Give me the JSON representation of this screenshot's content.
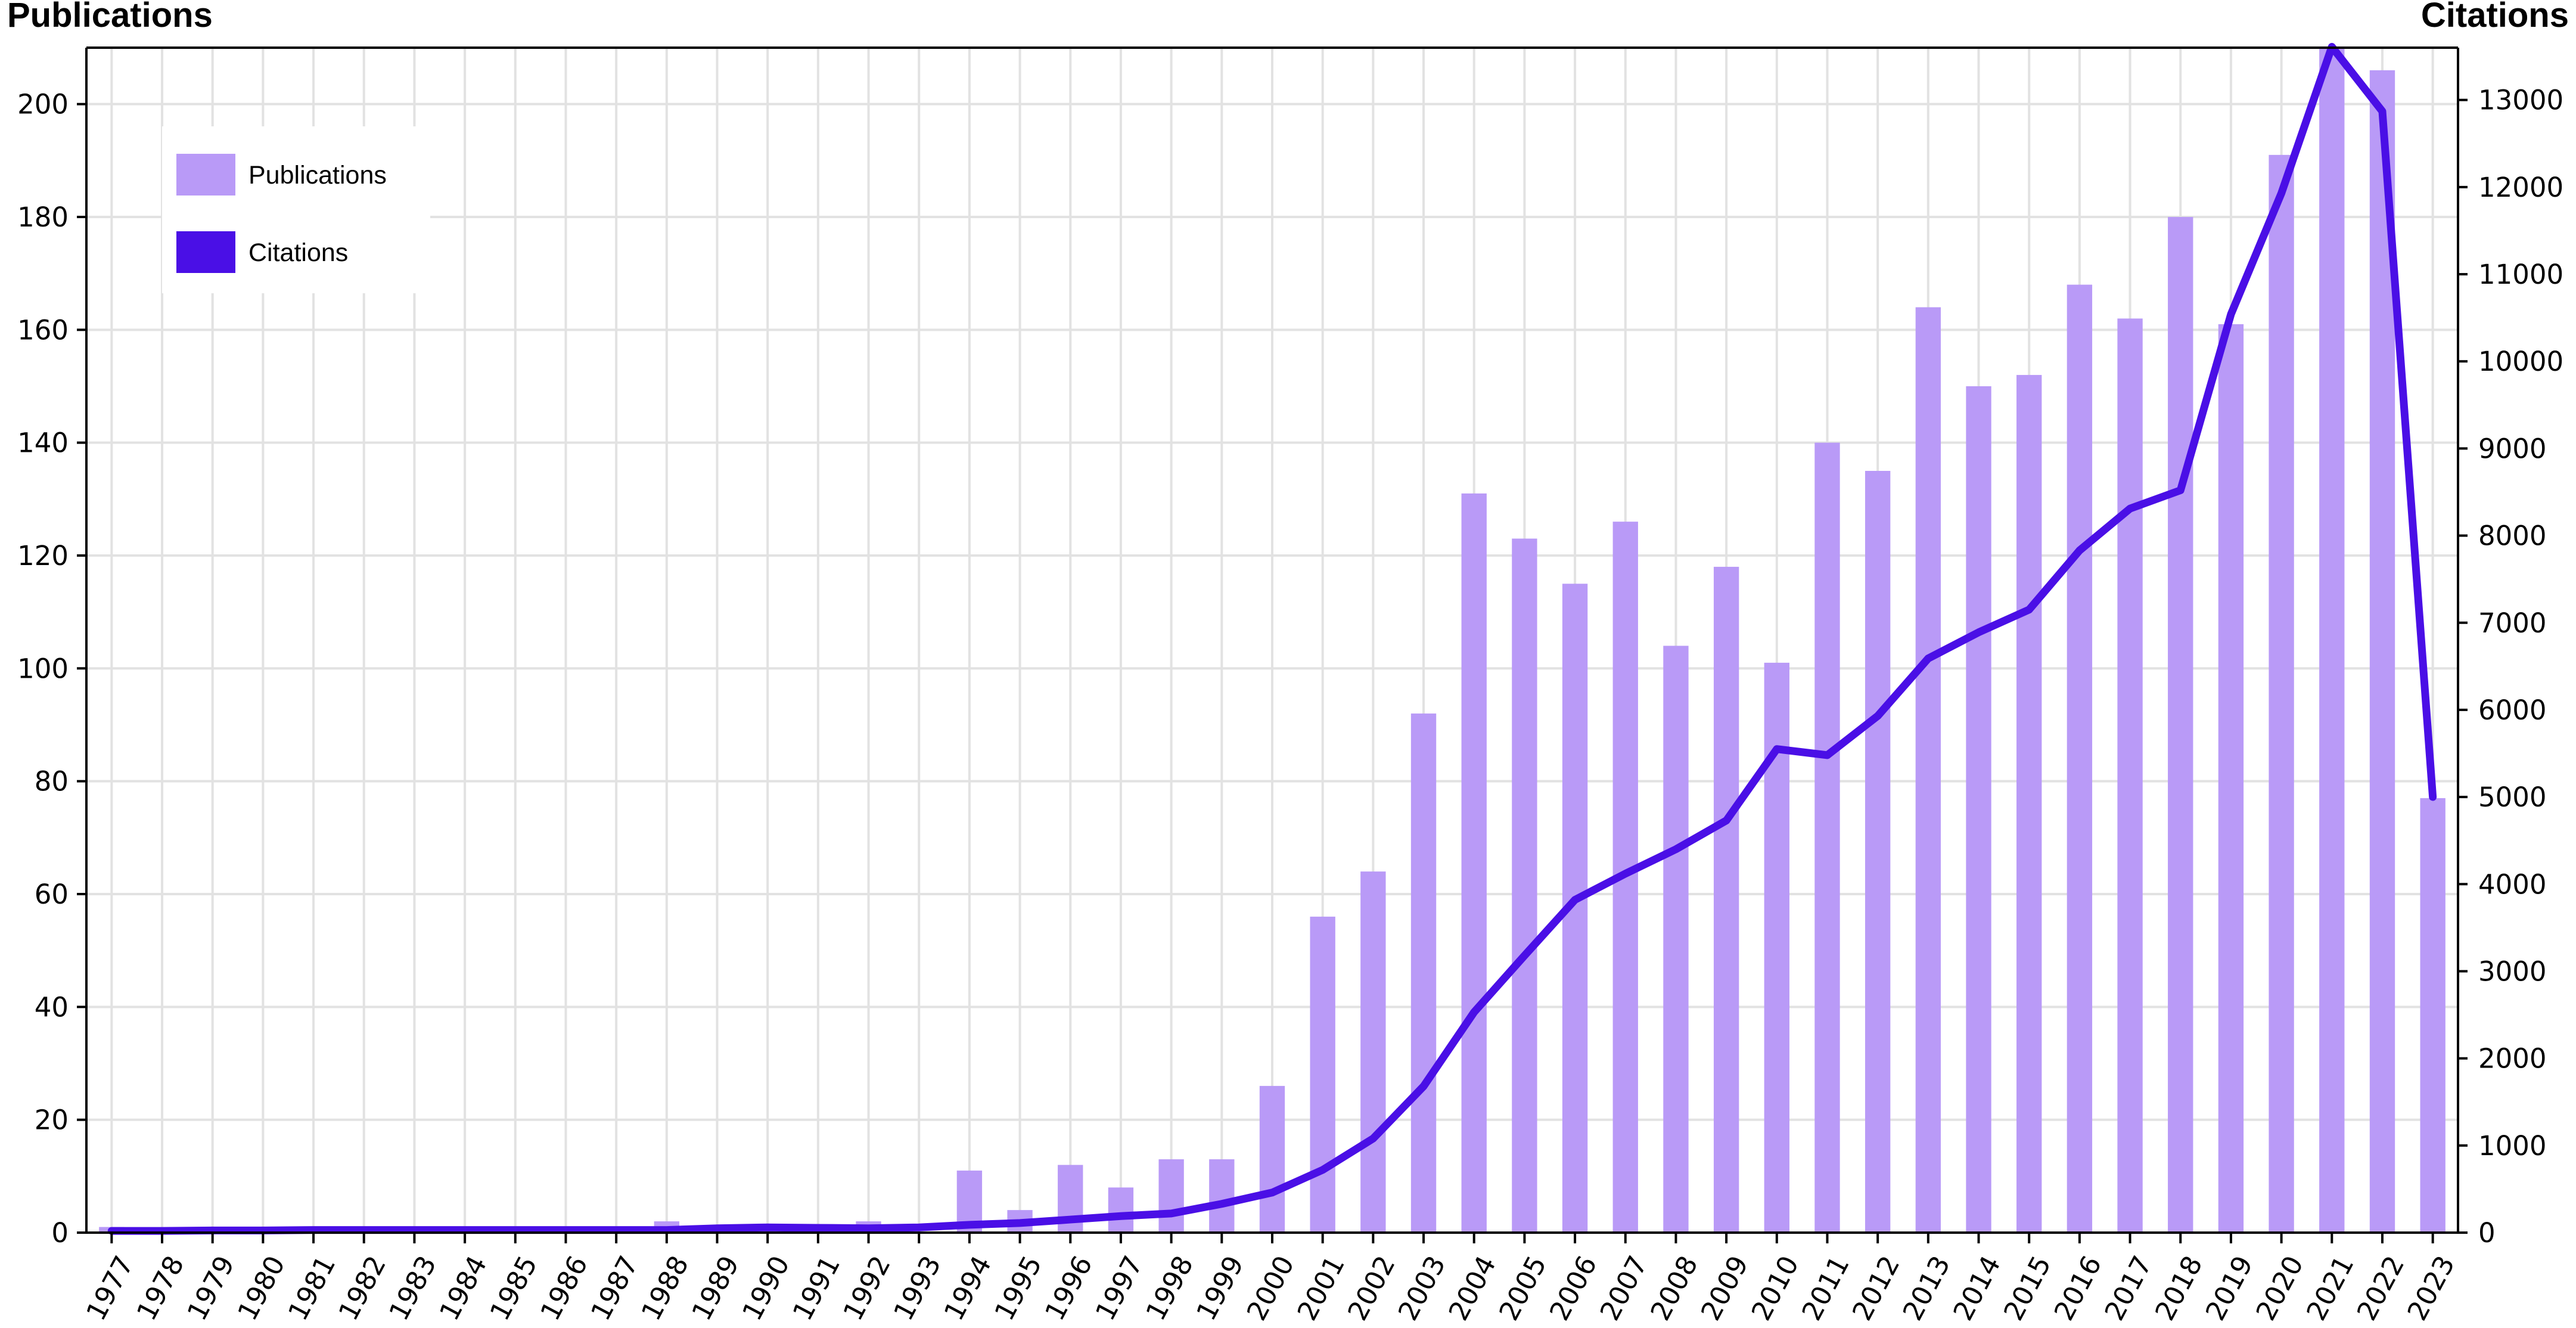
{
  "chart_data": {
    "type": "bar",
    "title": "",
    "left_axis_title": "Publications",
    "right_axis_title": "Citations",
    "categories": [
      "1977",
      "1978",
      "1979",
      "1980",
      "1981",
      "1982",
      "1983",
      "1984",
      "1985",
      "1986",
      "1987",
      "1988",
      "1989",
      "1990",
      "1991",
      "1992",
      "1993",
      "1994",
      "1995",
      "1996",
      "1997",
      "1998",
      "1999",
      "2000",
      "2001",
      "2002",
      "2003",
      "2004",
      "2005",
      "2006",
      "2007",
      "2008",
      "2009",
      "2010",
      "2011",
      "2012",
      "2013",
      "2014",
      "2015",
      "2016",
      "2017",
      "2018",
      "2019",
      "2020",
      "2021",
      "2022",
      "2023"
    ],
    "series": [
      {
        "name": "Publications",
        "type": "bar",
        "axis": "left",
        "color": "#b99af7",
        "values": [
          1,
          0,
          0,
          0,
          0,
          0,
          0,
          0,
          0,
          0,
          0,
          2,
          0,
          0,
          0,
          2,
          0,
          11,
          4,
          12,
          8,
          13,
          13,
          26,
          56,
          64,
          92,
          131,
          123,
          115,
          126,
          104,
          118,
          101,
          140,
          135,
          164,
          150,
          152,
          168,
          162,
          180,
          161,
          191,
          210,
          206,
          77
        ]
      },
      {
        "name": "Citations",
        "type": "line",
        "axis": "right",
        "color": "#4a0fe6",
        "values": [
          20,
          20,
          25,
          25,
          30,
          30,
          30,
          30,
          30,
          30,
          30,
          30,
          50,
          60,
          55,
          50,
          60,
          90,
          110,
          150,
          190,
          220,
          330,
          460,
          720,
          1080,
          1680,
          2530,
          3180,
          3820,
          4120,
          4400,
          4730,
          5550,
          5480,
          5930,
          6590,
          6890,
          7150,
          7830,
          8310,
          8520,
          10540,
          11930,
          13610,
          12870,
          5000
        ]
      }
    ],
    "left_axis": {
      "min": 0,
      "max": 210,
      "ticks": [
        0,
        20,
        40,
        60,
        80,
        100,
        120,
        140,
        160,
        180,
        200
      ]
    },
    "right_axis": {
      "min": 0,
      "max": 13600,
      "ticks": [
        0,
        1000,
        2000,
        3000,
        4000,
        5000,
        6000,
        7000,
        8000,
        9000,
        10000,
        11000,
        12000,
        13000
      ]
    },
    "grid": true,
    "legend": {
      "position": "top-left",
      "entries": [
        "Publications",
        "Citations"
      ]
    }
  }
}
